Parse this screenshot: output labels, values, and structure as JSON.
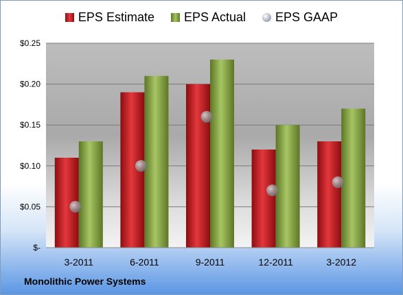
{
  "chart_data": {
    "type": "bar",
    "title": "",
    "categories": [
      "3-2011",
      "6-2011",
      "9-2011",
      "12-2011",
      "3-2012"
    ],
    "series": [
      {
        "name": "EPS Estimate",
        "type": "bar",
        "color": "#c8191e",
        "values": [
          0.11,
          0.19,
          0.2,
          0.12,
          0.13
        ]
      },
      {
        "name": "EPS Actual",
        "type": "bar",
        "color": "#8faf4a",
        "values": [
          0.13,
          0.21,
          0.23,
          0.15,
          0.17
        ]
      },
      {
        "name": "EPS GAAP",
        "type": "scatter",
        "color": "#9aa3ad",
        "values": [
          0.05,
          0.1,
          0.16,
          0.07,
          0.08
        ]
      }
    ],
    "ylim": [
      0,
      0.25
    ],
    "yticks": [
      0,
      0.05,
      0.1,
      0.15,
      0.2,
      0.25
    ],
    "ytick_labels": [
      "$-",
      "$0.05",
      "$0.10",
      "$0.15",
      "$0.20",
      "$0.25"
    ],
    "grid": true,
    "legend": "top"
  },
  "footer": {
    "company": "Monolithic Power Systems"
  }
}
